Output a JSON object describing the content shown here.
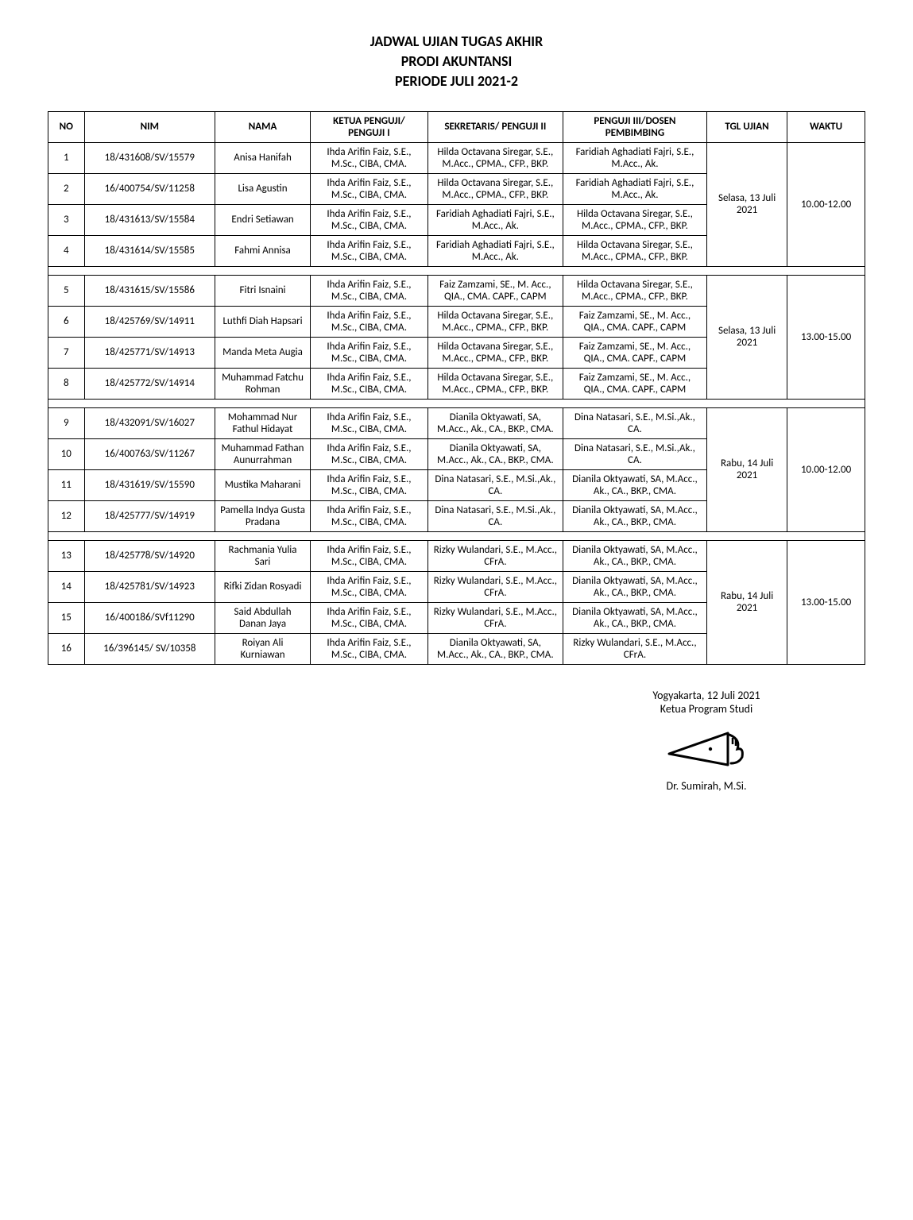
{
  "title": {
    "line1": "JADWAL UJIAN TUGAS AKHIR",
    "line2": "PRODI AKUNTANSI",
    "line3": "PERIODE JULI 2021-2"
  },
  "columns": {
    "no": "NO",
    "nim": "NIM",
    "nama": "NAMA",
    "ketua": "KETUA PENGUJI/ PENGUJI I",
    "sekretaris": "SEKRETARIS/ PENGUJI II",
    "penguji3": "PENGUJI III/DOSEN PEMBIMBING",
    "tgl": "TGL UJIAN",
    "waktu": "WAKTU"
  },
  "groups": [
    {
      "tgl": "Selasa, 13 Juli 2021",
      "waktu": "10.00-12.00",
      "rows": [
        {
          "no": "1",
          "nim": "18/431608/SV/15579",
          "nama": "Anisa Hanifah",
          "k": "Ihda Arifin Faiz, S.E., M.Sc., CIBA, CMA.",
          "s": "Hilda Octavana Siregar, S.E., M.Acc., CPMA., CFP., BKP.",
          "p": "Faridiah Aghadiati Fajri, S.E., M.Acc., Ak."
        },
        {
          "no": "2",
          "nim": "16/400754/SV/11258",
          "nama": "Lisa Agustin",
          "k": "Ihda Arifin Faiz, S.E., M.Sc., CIBA, CMA.",
          "s": "Hilda Octavana Siregar, S.E., M.Acc., CPMA., CFP., BKP.",
          "p": "Faridiah Aghadiati Fajri, S.E., M.Acc., Ak."
        },
        {
          "no": "3",
          "nim": "18/431613/SV/15584",
          "nama": "Endri Setiawan",
          "k": "Ihda Arifin Faiz, S.E., M.Sc., CIBA, CMA.",
          "s": "Faridiah Aghadiati Fajri, S.E., M.Acc., Ak.",
          "p": "Hilda Octavana Siregar, S.E., M.Acc., CPMA., CFP., BKP."
        },
        {
          "no": "4",
          "nim": "18/431614/SV/15585",
          "nama": "Fahmi Annisa",
          "k": "Ihda Arifin Faiz, S.E., M.Sc., CIBA, CMA.",
          "s": "Faridiah Aghadiati Fajri, S.E., M.Acc., Ak.",
          "p": "Hilda Octavana Siregar, S.E., M.Acc., CPMA., CFP., BKP."
        }
      ]
    },
    {
      "tgl": "Selasa, 13 Juli 2021",
      "waktu": "13.00-15.00",
      "rows": [
        {
          "no": "5",
          "nim": "18/431615/SV/15586",
          "nama": "Fitri Isnaini",
          "k": "Ihda Arifin Faiz, S.E., M.Sc., CIBA, CMA.",
          "s": "Faiz Zamzami, SE., M. Acc., QIA., CMA. CAPF., CAPM",
          "p": "Hilda Octavana Siregar, S.E., M.Acc., CPMA., CFP., BKP."
        },
        {
          "no": "6",
          "nim": "18/425769/SV/14911",
          "nama": "Luthfi Diah Hapsari",
          "k": "Ihda Arifin Faiz, S.E., M.Sc., CIBA, CMA.",
          "s": "Hilda Octavana Siregar, S.E., M.Acc., CPMA., CFP., BKP.",
          "p": "Faiz Zamzami, SE., M. Acc., QIA., CMA. CAPF., CAPM"
        },
        {
          "no": "7",
          "nim": "18/425771/SV/14913",
          "nama": "Manda Meta Augia",
          "k": "Ihda Arifin Faiz, S.E., M.Sc., CIBA, CMA.",
          "s": "Hilda Octavana Siregar, S.E., M.Acc., CPMA., CFP., BKP.",
          "p": "Faiz Zamzami, SE., M. Acc., QIA., CMA. CAPF., CAPM"
        },
        {
          "no": "8",
          "nim": "18/425772/SV/14914",
          "nama": "Muhammad Fatchu Rohman",
          "k": "Ihda Arifin Faiz, S.E., M.Sc., CIBA, CMA.",
          "s": "Hilda Octavana Siregar, S.E., M.Acc., CPMA., CFP., BKP.",
          "p": "Faiz Zamzami, SE., M. Acc., QIA., CMA. CAPF., CAPM"
        }
      ]
    },
    {
      "tgl": "Rabu, 14 Juli 2021",
      "waktu": "10.00-12.00",
      "rows": [
        {
          "no": "9",
          "nim": "18/432091/SV/16027",
          "nama": "Mohammad Nur Fathul Hidayat",
          "k": "Ihda Arifin Faiz, S.E., M.Sc., CIBA, CMA.",
          "s": "Dianila Oktyawati, SA, M.Acc., Ak., CA., BKP., CMA.",
          "p": "Dina Natasari, S.E., M.Si.,Ak., CA."
        },
        {
          "no": "10",
          "nim": "16/400763/SV/11267",
          "nama": "Muhammad Fathan Aunurrahman",
          "k": "Ihda Arifin Faiz, S.E., M.Sc., CIBA, CMA.",
          "s": "Dianila Oktyawati, SA, M.Acc., Ak., CA., BKP., CMA.",
          "p": "Dina Natasari, S.E., M.Si.,Ak., CA."
        },
        {
          "no": "11",
          "nim": "18/431619/SV/15590",
          "nama": "Mustika Maharani",
          "k": "Ihda Arifin Faiz, S.E., M.Sc., CIBA, CMA.",
          "s": "Dina Natasari, S.E., M.Si.,Ak., CA.",
          "p": "Dianila Oktyawati, SA, M.Acc., Ak., CA., BKP., CMA."
        },
        {
          "no": "12",
          "nim": "18/425777/SV/14919",
          "nama": "Pamella Indya Gusta Pradana",
          "k": "Ihda Arifin Faiz, S.E., M.Sc., CIBA, CMA.",
          "s": "Dina Natasari, S.E., M.Si.,Ak., CA.",
          "p": "Dianila Oktyawati, SA, M.Acc., Ak., CA., BKP., CMA."
        }
      ]
    },
    {
      "tgl": "Rabu, 14 Juli 2021",
      "waktu": "13.00-15.00",
      "rows": [
        {
          "no": "13",
          "nim": "18/425778/SV/14920",
          "nama": "Rachmania Yulia Sari",
          "k": "Ihda Arifin Faiz, S.E., M.Sc., CIBA, CMA.",
          "s": "Rizky Wulandari, S.E., M.Acc., CFrA.",
          "p": "Dianila Oktyawati, SA, M.Acc., Ak., CA., BKP., CMA."
        },
        {
          "no": "14",
          "nim": "18/425781/SV/14923",
          "nama": "Rifki Zidan Rosyadi",
          "k": "Ihda Arifin Faiz, S.E., M.Sc., CIBA, CMA.",
          "s": "Rizky Wulandari, S.E., M.Acc., CFrA.",
          "p": "Dianila Oktyawati, SA, M.Acc., Ak., CA., BKP., CMA."
        },
        {
          "no": "15",
          "nim": "16/400186/SVf11290",
          "nama": "Said Abdullah Danan Jaya",
          "k": "Ihda Arifin Faiz, S.E., M.Sc., CIBA, CMA.",
          "s": "Rizky Wulandari, S.E., M.Acc., CFrA.",
          "p": "Dianila Oktyawati, SA, M.Acc., Ak., CA., BKP., CMA."
        },
        {
          "no": "16",
          "nim": "16/396145/ SV/10358",
          "nama": "Roiyan Ali Kurniawan",
          "k": "Ihda Arifin Faiz, S.E., M.Sc., CIBA, CMA.",
          "s": "Dianila Oktyawati, SA, M.Acc., Ak., CA., BKP., CMA.",
          "p": "Rizky Wulandari, S.E., M.Acc., CFrA."
        }
      ]
    }
  ],
  "footer": {
    "place_date": "Yogyakarta,  12 Juli 2021",
    "role": "Ketua Program Studi",
    "name": "Dr. Sumirah, M.Si."
  },
  "style": {
    "background": "#ffffff",
    "border_color": "#000000",
    "title_fontsize": 18,
    "body_fontsize": 13
  }
}
